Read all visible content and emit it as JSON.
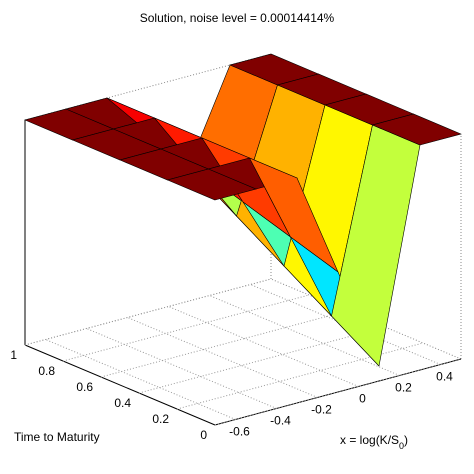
{
  "chart_data": {
    "type": "surface",
    "title": "Solution, noise level = 0.00014414%",
    "ylabel": "Time to Maturity",
    "xlabel": {
      "main": "x = log(K/S",
      "sub": "0",
      "end": ")"
    },
    "x": [
      -0.7,
      -0.5,
      -0.3,
      -0.1,
      0.1,
      0.3,
      0.5
    ],
    "t": [
      0,
      0.25,
      0.5,
      0.75,
      1
    ],
    "z": [
      [
        3,
        3,
        3,
        1.6,
        0.2,
        3,
        3
      ],
      [
        3,
        3,
        3,
        1.8,
        0.6,
        3,
        3
      ],
      [
        3,
        3,
        3,
        2.0,
        1.0,
        3,
        3
      ],
      [
        3,
        3,
        3,
        2.2,
        1.4,
        3,
        3
      ],
      [
        3,
        3,
        3,
        2.4,
        1.8,
        3,
        3
      ]
    ],
    "xlim": [
      -0.7,
      0.5
    ],
    "ylim": [
      0,
      1
    ],
    "zlim": [
      0,
      3
    ],
    "xticks": [
      -0.6,
      -0.4,
      -0.2,
      0,
      0.2,
      0.4
    ],
    "yticks": [
      0,
      0.2,
      0.4,
      0.6,
      0.8,
      1
    ],
    "colormap": "jet",
    "grid": true
  }
}
